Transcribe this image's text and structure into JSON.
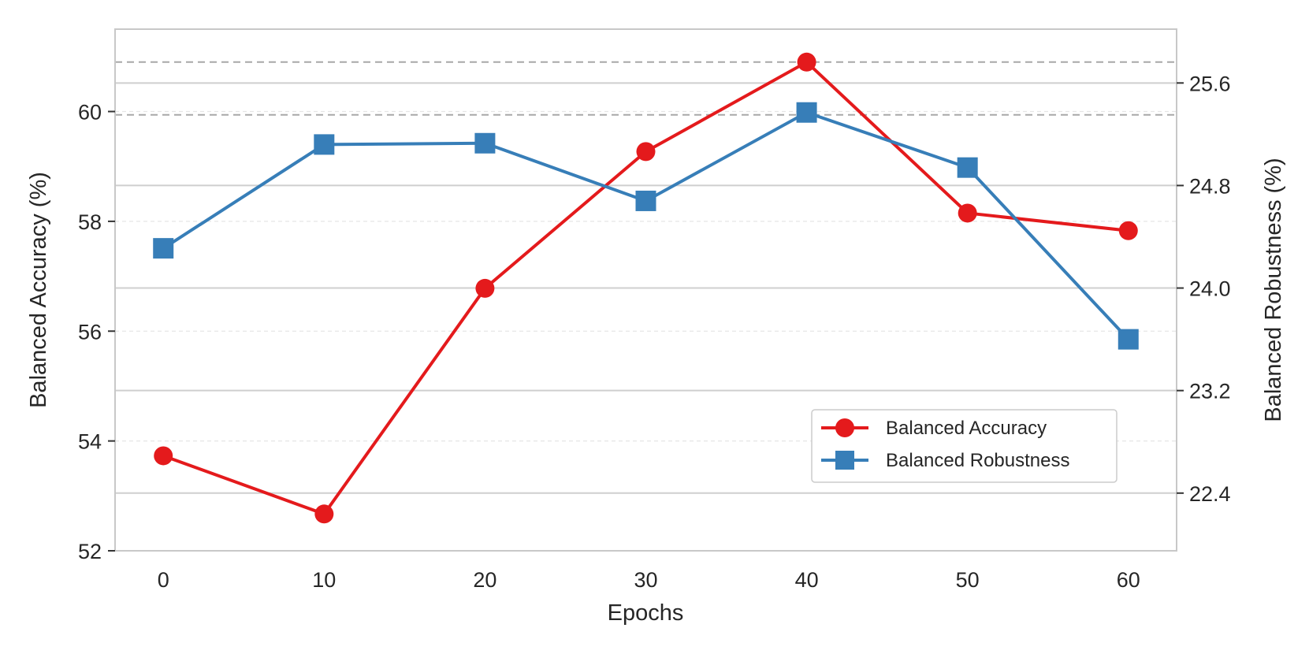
{
  "chart_data": {
    "type": "line",
    "title": "",
    "xlabel": "Epochs",
    "ylabel": "Balanced Accuracy (%)",
    "y2label": "Balanced Robustness (%)",
    "x": [
      0,
      10,
      20,
      30,
      40,
      50,
      60
    ],
    "x_ticks": [
      "0",
      "10",
      "20",
      "30",
      "40",
      "50",
      "60"
    ],
    "xlim": [
      -3,
      63
    ],
    "ylim": [
      52,
      61.5
    ],
    "y_ticks": [
      52,
      54,
      56,
      58,
      60
    ],
    "y_tick_labels": [
      "52",
      "54",
      "56",
      "58",
      "60"
    ],
    "y2lim": [
      21.95,
      26.02
    ],
    "y2_ticks": [
      22.4,
      23.2,
      24.0,
      24.8,
      25.6
    ],
    "y2_tick_labels": [
      "22.4",
      "23.2",
      "24.0",
      "24.8",
      "25.6"
    ],
    "reference_lines_y": [
      60.9,
      59.94
    ],
    "series": [
      {
        "name": "Balanced Accuracy",
        "axis": "left",
        "color": "#e41a1c",
        "marker": "circle",
        "values": [
          53.73,
          52.67,
          56.78,
          59.27,
          60.9,
          58.15,
          57.83
        ]
      },
      {
        "name": "Balanced Robustness",
        "axis": "right",
        "color": "#377eb8",
        "marker": "square",
        "values": [
          24.31,
          25.12,
          25.13,
          24.68,
          25.37,
          24.94,
          23.6
        ]
      }
    ],
    "legend": {
      "placement": "lower-right",
      "entries": [
        "Balanced Accuracy",
        "Balanced Robustness"
      ]
    },
    "grid": true
  }
}
